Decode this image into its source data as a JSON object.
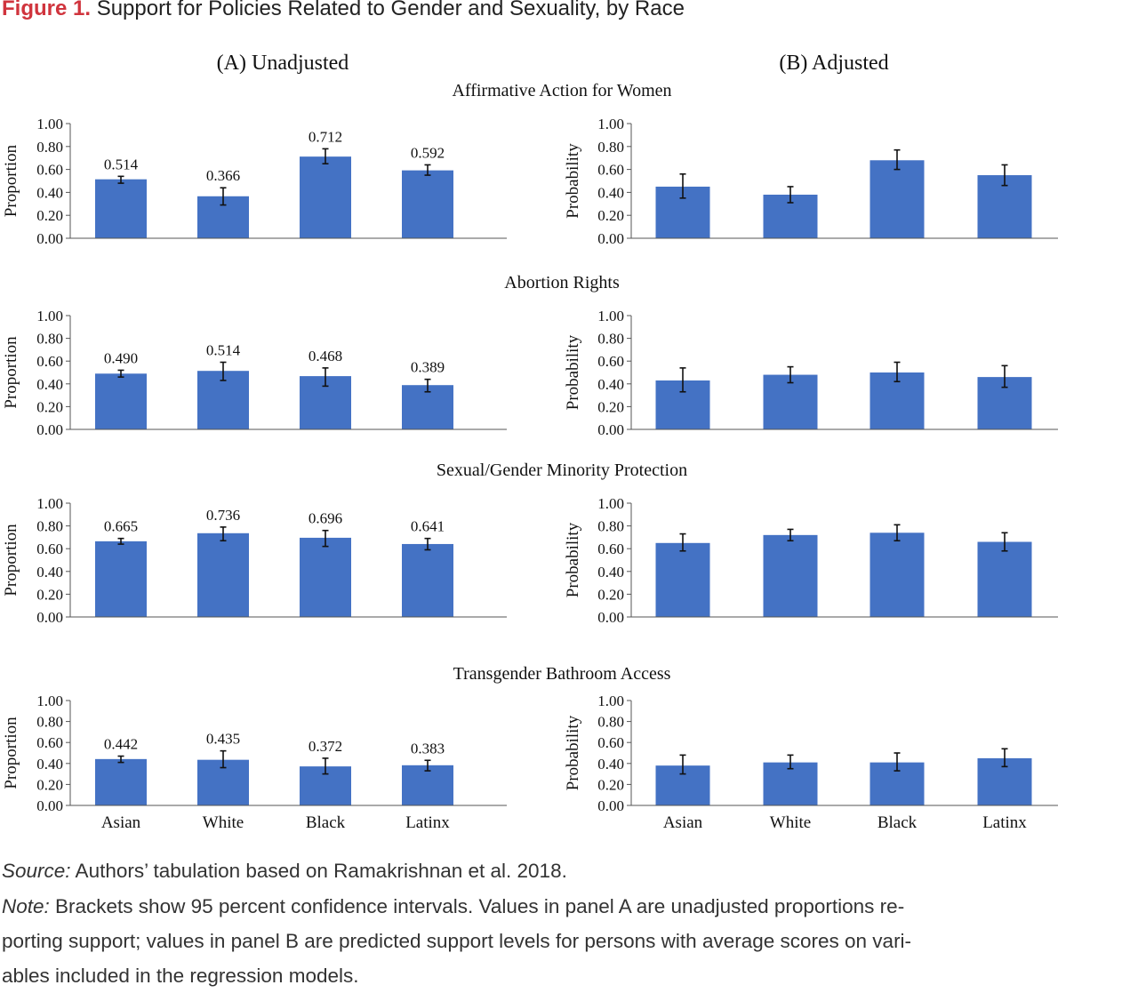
{
  "figure": {
    "label": "Figure 1.",
    "title": "Support for Policies Related to Gender and Sexuality, by Race"
  },
  "panels": {
    "a_title": "(A) Unadjusted",
    "b_title": "(B) Adjusted"
  },
  "rows": [
    {
      "title": "Affirmative Action for Women"
    },
    {
      "title": "Abortion Rights"
    },
    {
      "title": "Sexual/Gender Minority Protection"
    },
    {
      "title": "Transgender Bathroom Access"
    }
  ],
  "colors": {
    "bar": "#4472c4",
    "caption_label": "#d0343d"
  },
  "chart_data": [
    {
      "type": "bar",
      "panel": "(A) Unadjusted",
      "title": "Affirmative Action for Women",
      "ylabel": "Proportion",
      "ylim": [
        0,
        1
      ],
      "yticks": [
        "0.00",
        "0.20",
        "0.40",
        "0.60",
        "0.80",
        "1.00"
      ],
      "categories": [
        "Asian",
        "White",
        "Black",
        "Latinx"
      ],
      "values": [
        0.514,
        0.366,
        0.712,
        0.592
      ],
      "data_labels": [
        "0.514",
        "0.366",
        "0.712",
        "0.592"
      ],
      "ci_low": [
        0.48,
        0.29,
        0.65,
        0.55
      ],
      "ci_high": [
        0.54,
        0.44,
        0.78,
        0.64
      ],
      "show_xticks": false
    },
    {
      "type": "bar",
      "panel": "(B) Adjusted",
      "title": "Affirmative Action for Women",
      "ylabel": "Probability",
      "ylim": [
        0,
        1
      ],
      "yticks": [
        "0.00",
        "0.20",
        "0.40",
        "0.60",
        "0.80",
        "1.00"
      ],
      "categories": [
        "Asian",
        "White",
        "Black",
        "Latinx"
      ],
      "values": [
        0.45,
        0.38,
        0.68,
        0.55
      ],
      "data_labels": [],
      "ci_low": [
        0.35,
        0.31,
        0.6,
        0.46
      ],
      "ci_high": [
        0.56,
        0.45,
        0.77,
        0.64
      ],
      "show_xticks": false
    },
    {
      "type": "bar",
      "panel": "(A) Unadjusted",
      "title": "Abortion Rights",
      "ylabel": "Proportion",
      "ylim": [
        0,
        1
      ],
      "yticks": [
        "0.00",
        "0.20",
        "0.40",
        "0.60",
        "0.80",
        "1.00"
      ],
      "categories": [
        "Asian",
        "White",
        "Black",
        "Latinx"
      ],
      "values": [
        0.49,
        0.514,
        0.468,
        0.389
      ],
      "data_labels": [
        "0.490",
        "0.514",
        "0.468",
        "0.389"
      ],
      "ci_low": [
        0.46,
        0.43,
        0.38,
        0.33
      ],
      "ci_high": [
        0.52,
        0.59,
        0.54,
        0.44
      ],
      "show_xticks": false
    },
    {
      "type": "bar",
      "panel": "(B) Adjusted",
      "title": "Abortion Rights",
      "ylabel": "Probability",
      "ylim": [
        0,
        1
      ],
      "yticks": [
        "0.00",
        "0.20",
        "0.40",
        "0.60",
        "0.80",
        "1.00"
      ],
      "categories": [
        "Asian",
        "White",
        "Black",
        "Latinx"
      ],
      "values": [
        0.43,
        0.48,
        0.5,
        0.46
      ],
      "data_labels": [],
      "ci_low": [
        0.33,
        0.41,
        0.42,
        0.37
      ],
      "ci_high": [
        0.54,
        0.55,
        0.59,
        0.56
      ],
      "show_xticks": false
    },
    {
      "type": "bar",
      "panel": "(A) Unadjusted",
      "title": "Sexual/Gender Minority Protection",
      "ylabel": "Proportion",
      "ylim": [
        0,
        1
      ],
      "yticks": [
        "0.00",
        "0.20",
        "0.40",
        "0.60",
        "0.80",
        "1.00"
      ],
      "categories": [
        "Asian",
        "White",
        "Black",
        "Latinx"
      ],
      "values": [
        0.665,
        0.736,
        0.696,
        0.641
      ],
      "data_labels": [
        "0.665",
        "0.736",
        "0.696",
        "0.641"
      ],
      "ci_low": [
        0.64,
        0.67,
        0.62,
        0.59
      ],
      "ci_high": [
        0.69,
        0.79,
        0.76,
        0.69
      ],
      "show_xticks": false
    },
    {
      "type": "bar",
      "panel": "(B) Adjusted",
      "title": "Sexual/Gender Minority Protection",
      "ylabel": "Probability",
      "ylim": [
        0,
        1
      ],
      "yticks": [
        "0.00",
        "0.20",
        "0.40",
        "0.60",
        "0.80",
        "1.00"
      ],
      "categories": [
        "Asian",
        "White",
        "Black",
        "Latinx"
      ],
      "values": [
        0.65,
        0.72,
        0.74,
        0.66
      ],
      "data_labels": [],
      "ci_low": [
        0.58,
        0.67,
        0.67,
        0.58
      ],
      "ci_high": [
        0.73,
        0.77,
        0.81,
        0.74
      ],
      "show_xticks": false
    },
    {
      "type": "bar",
      "panel": "(A) Unadjusted",
      "title": "Transgender Bathroom Access",
      "ylabel": "Proportion",
      "ylim": [
        0,
        1
      ],
      "yticks": [
        "0.00",
        "0.20",
        "0.40",
        "0.60",
        "0.80",
        "1.00"
      ],
      "categories": [
        "Asian",
        "White",
        "Black",
        "Latinx"
      ],
      "values": [
        0.442,
        0.435,
        0.372,
        0.383
      ],
      "data_labels": [
        "0.442",
        "0.435",
        "0.372",
        "0.383"
      ],
      "ci_low": [
        0.41,
        0.36,
        0.3,
        0.33
      ],
      "ci_high": [
        0.47,
        0.52,
        0.45,
        0.43
      ],
      "show_xticks": true
    },
    {
      "type": "bar",
      "panel": "(B) Adjusted",
      "title": "Transgender Bathroom Access",
      "ylabel": "Probability",
      "ylim": [
        0,
        1
      ],
      "yticks": [
        "0.00",
        "0.20",
        "0.40",
        "0.60",
        "0.80",
        "1.00"
      ],
      "categories": [
        "Asian",
        "White",
        "Black",
        "Latinx"
      ],
      "values": [
        0.38,
        0.41,
        0.41,
        0.45
      ],
      "data_labels": [],
      "ci_low": [
        0.3,
        0.35,
        0.33,
        0.37
      ],
      "ci_high": [
        0.48,
        0.48,
        0.5,
        0.54
      ],
      "show_xticks": true
    }
  ],
  "source": {
    "label": "Source:",
    "text": " Authors’ tabulation based on Ramakrishnan et al. 2018."
  },
  "note": {
    "label": "Note:",
    "line1": " Brackets show 95 percent confidence intervals. Values in panel A are unadjusted proportions re-",
    "line2": "porting support; values in panel B are predicted support levels for persons with average scores on vari-",
    "line3": "ables included in the regression models."
  }
}
